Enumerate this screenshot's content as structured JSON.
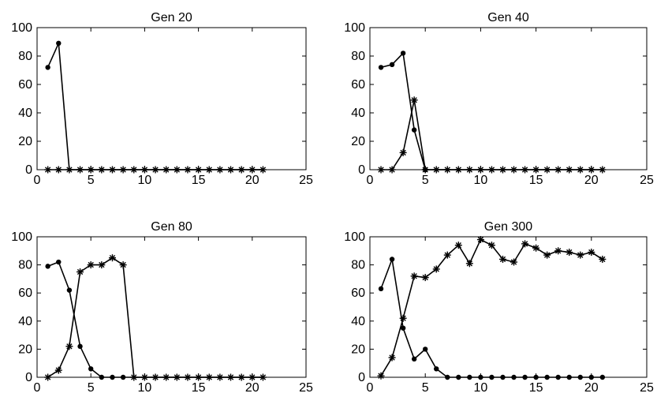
{
  "chart_data": [
    {
      "type": "line",
      "title": "Gen 20",
      "xlim": [
        0,
        25
      ],
      "ylim": [
        0,
        100
      ],
      "xticks": [
        0,
        5,
        10,
        15,
        20,
        25
      ],
      "yticks": [
        0,
        20,
        40,
        60,
        80,
        100
      ],
      "x": [
        1,
        2,
        3,
        4,
        5,
        6,
        7,
        8,
        9,
        10,
        11,
        12,
        13,
        14,
        15,
        16,
        17,
        18,
        19,
        20,
        21
      ],
      "series": [
        {
          "marker": "dot",
          "values": [
            72,
            89,
            0,
            0,
            0,
            0,
            0,
            0,
            0,
            0,
            0,
            0,
            0,
            0,
            0,
            0,
            0,
            0,
            0,
            0,
            0
          ],
          "marker_points": 2
        },
        {
          "marker": "star",
          "values": [
            0,
            0,
            0,
            0,
            0,
            0,
            0,
            0,
            0,
            0,
            0,
            0,
            0,
            0,
            0,
            0,
            0,
            0,
            0,
            0,
            0
          ]
        }
      ]
    },
    {
      "type": "line",
      "title": "Gen 40",
      "xlim": [
        0,
        25
      ],
      "ylim": [
        0,
        100
      ],
      "xticks": [
        0,
        5,
        10,
        15,
        20,
        25
      ],
      "yticks": [
        0,
        20,
        40,
        60,
        80,
        100
      ],
      "x": [
        1,
        2,
        3,
        4,
        5,
        6,
        7,
        8,
        9,
        10,
        11,
        12,
        13,
        14,
        15,
        16,
        17,
        18,
        19,
        20,
        21
      ],
      "series": [
        {
          "marker": "dot",
          "values": [
            72,
            74,
            82,
            28,
            0,
            0,
            0,
            0,
            0,
            0,
            0,
            0,
            0,
            0,
            0,
            0,
            0,
            0,
            0,
            0,
            0
          ],
          "marker_points": 5
        },
        {
          "marker": "star",
          "values": [
            0,
            0,
            12,
            49,
            0,
            0,
            0,
            0,
            0,
            0,
            0,
            0,
            0,
            0,
            0,
            0,
            0,
            0,
            0,
            0,
            0
          ]
        }
      ]
    },
    {
      "type": "line",
      "title": "Gen 80",
      "xlim": [
        0,
        25
      ],
      "ylim": [
        0,
        100
      ],
      "xticks": [
        0,
        5,
        10,
        15,
        20,
        25
      ],
      "yticks": [
        0,
        20,
        40,
        60,
        80,
        100
      ],
      "x": [
        1,
        2,
        3,
        4,
        5,
        6,
        7,
        8,
        9,
        10,
        11,
        12,
        13,
        14,
        15,
        16,
        17,
        18,
        19,
        20,
        21
      ],
      "series": [
        {
          "marker": "dot",
          "values": [
            79,
            82,
            62,
            22,
            6,
            0,
            0,
            0,
            0,
            0,
            0,
            0,
            0,
            0,
            0,
            0,
            0,
            0,
            0,
            0,
            0
          ],
          "marker_points": 8
        },
        {
          "marker": "star",
          "values": [
            0,
            5,
            22,
            75,
            80,
            80,
            85,
            80,
            0,
            0,
            0,
            0,
            0,
            0,
            0,
            0,
            0,
            0,
            0,
            0,
            0
          ]
        }
      ]
    },
    {
      "type": "line",
      "title": "Gen 300",
      "xlim": [
        0,
        25
      ],
      "ylim": [
        0,
        100
      ],
      "xticks": [
        0,
        5,
        10,
        15,
        20,
        25
      ],
      "yticks": [
        0,
        20,
        40,
        60,
        80,
        100
      ],
      "x": [
        1,
        2,
        3,
        4,
        5,
        6,
        7,
        8,
        9,
        10,
        11,
        12,
        13,
        14,
        15,
        16,
        17,
        18,
        19,
        20,
        21
      ],
      "series": [
        {
          "marker": "dot",
          "values": [
            63,
            84,
            35,
            13,
            20,
            6,
            0,
            0,
            0,
            0,
            0,
            0,
            0,
            0,
            0,
            0,
            0,
            0,
            0,
            0,
            0
          ],
          "marker_points": 21
        },
        {
          "marker": "star",
          "values": [
            1,
            14,
            42,
            72,
            71,
            77,
            87,
            94,
            81,
            98,
            94,
            84,
            82,
            95,
            92,
            87,
            90,
            89,
            87,
            89,
            84
          ]
        }
      ]
    }
  ]
}
